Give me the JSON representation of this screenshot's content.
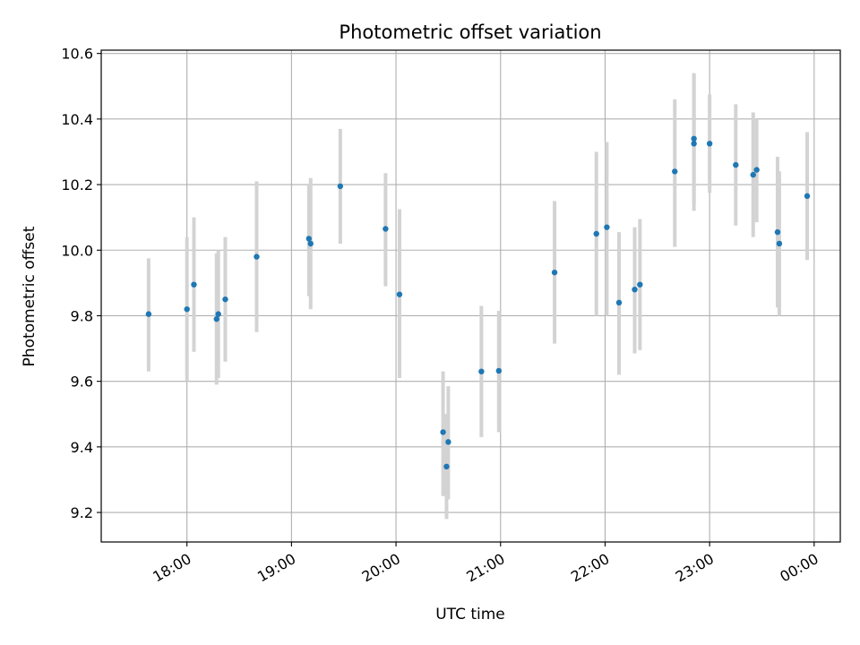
{
  "chart_data": {
    "type": "scatter",
    "title": "Photometric offset variation",
    "xlabel": "UTC time",
    "ylabel": "Photometric offset",
    "x_tick_labels": [
      "18:00",
      "19:00",
      "20:00",
      "21:00",
      "22:00",
      "23:00",
      "00:00"
    ],
    "y_tick_labels": [
      "9.2",
      "9.4",
      "9.6",
      "9.8",
      "10.0",
      "10.2",
      "10.4",
      "10.6"
    ],
    "x_axis_hours": [
      17.18,
      24.25
    ],
    "ylim": [
      9.11,
      10.61
    ],
    "grid": true,
    "colors": {
      "point": "#1f77b4",
      "errorbar": "#d3d3d3",
      "grid": "#b0b0b0"
    },
    "points": [
      {
        "time": "17:38",
        "y": 9.805,
        "ymin": 9.63,
        "ymax": 9.975
      },
      {
        "time": "18:00",
        "y": 9.82,
        "ymin": 9.6,
        "ymax": 10.04
      },
      {
        "time": "18:04",
        "y": 9.895,
        "ymin": 9.69,
        "ymax": 10.1
      },
      {
        "time": "18:17",
        "y": 9.79,
        "ymin": 9.59,
        "ymax": 9.99
      },
      {
        "time": "18:18",
        "y": 9.805,
        "ymin": 9.61,
        "ymax": 10.0
      },
      {
        "time": "18:22",
        "y": 9.85,
        "ymin": 9.66,
        "ymax": 10.04
      },
      {
        "time": "18:40",
        "y": 9.98,
        "ymin": 9.75,
        "ymax": 10.21
      },
      {
        "time": "19:10",
        "y": 10.035,
        "ymin": 9.86,
        "ymax": 10.2
      },
      {
        "time": "19:11",
        "y": 10.02,
        "ymin": 9.82,
        "ymax": 10.22
      },
      {
        "time": "19:28",
        "y": 10.195,
        "ymin": 10.02,
        "ymax": 10.37
      },
      {
        "time": "19:54",
        "y": 10.065,
        "ymin": 9.89,
        "ymax": 10.235
      },
      {
        "time": "20:02",
        "y": 9.865,
        "ymin": 9.61,
        "ymax": 10.125
      },
      {
        "time": "20:27",
        "y": 9.445,
        "ymin": 9.25,
        "ymax": 9.63
      },
      {
        "time": "20:29",
        "y": 9.34,
        "ymin": 9.18,
        "ymax": 9.5
      },
      {
        "time": "20:30",
        "y": 9.415,
        "ymin": 9.24,
        "ymax": 9.585
      },
      {
        "time": "20:49",
        "y": 9.63,
        "ymin": 9.43,
        "ymax": 9.83
      },
      {
        "time": "20:59",
        "y": 9.632,
        "ymin": 9.445,
        "ymax": 9.815
      },
      {
        "time": "21:31",
        "y": 9.932,
        "ymin": 9.715,
        "ymax": 10.15
      },
      {
        "time": "21:55",
        "y": 10.05,
        "ymin": 9.8,
        "ymax": 10.3
      },
      {
        "time": "22:01",
        "y": 10.07,
        "ymin": 9.8,
        "ymax": 10.33
      },
      {
        "time": "22:08",
        "y": 9.84,
        "ymin": 9.62,
        "ymax": 10.055
      },
      {
        "time": "22:17",
        "y": 9.88,
        "ymin": 9.685,
        "ymax": 10.07
      },
      {
        "time": "22:20",
        "y": 9.895,
        "ymin": 9.695,
        "ymax": 10.095
      },
      {
        "time": "22:40",
        "y": 10.24,
        "ymin": 10.01,
        "ymax": 10.46
      },
      {
        "time": "22:51",
        "y": 10.325,
        "ymin": 10.12,
        "ymax": 10.54
      },
      {
        "time": "22:51",
        "y": 10.34,
        "ymin": 10.145,
        "ymax": 10.535
      },
      {
        "time": "23:00",
        "y": 10.325,
        "ymin": 10.175,
        "ymax": 10.475
      },
      {
        "time": "23:15",
        "y": 10.26,
        "ymin": 10.075,
        "ymax": 10.445
      },
      {
        "time": "23:25",
        "y": 10.23,
        "ymin": 10.04,
        "ymax": 10.42
      },
      {
        "time": "23:27",
        "y": 10.245,
        "ymin": 10.085,
        "ymax": 10.4
      },
      {
        "time": "23:39",
        "y": 10.055,
        "ymin": 9.825,
        "ymax": 10.285
      },
      {
        "time": "23:40",
        "y": 10.02,
        "ymin": 9.8,
        "ymax": 10.24
      },
      {
        "time": "23:56",
        "y": 10.165,
        "ymin": 9.97,
        "ymax": 10.36
      }
    ]
  }
}
